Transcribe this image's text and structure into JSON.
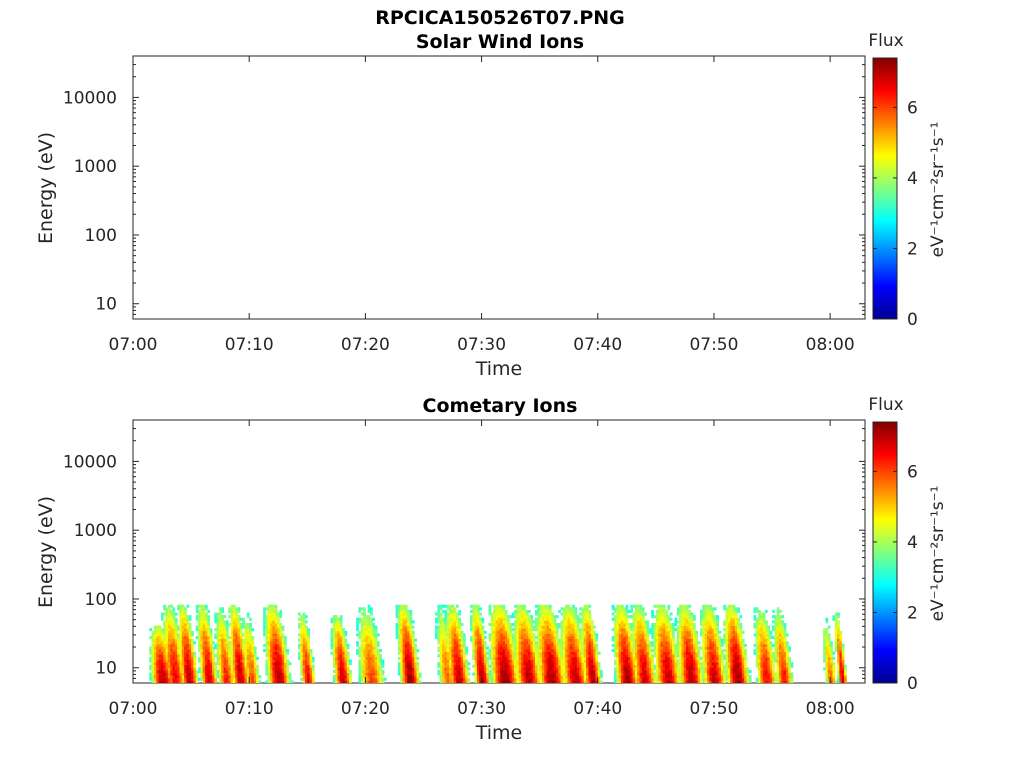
{
  "figure_title": "RPCICA150526T07.PNG",
  "colormap": [
    "#00008f",
    "#0000ff",
    "#0080ff",
    "#00ffff",
    "#80ff80",
    "#ffff00",
    "#ff8000",
    "#ff0000",
    "#800000"
  ],
  "chart_data": [
    {
      "type": "heatmap",
      "title": "Solar Wind Ions",
      "xlabel": "Time",
      "ylabel": "Energy (eV)",
      "y_scale": "log",
      "ylim": [
        6,
        40000
      ],
      "x_tick_labels": [
        "07:00",
        "07:10",
        "07:20",
        "07:30",
        "07:40",
        "07:50",
        "08:00"
      ],
      "y_tick_labels": [
        "10",
        "100",
        "1000",
        "10000"
      ],
      "colorbar": {
        "title": "Flux",
        "units": "eV⁻¹cm⁻²sr⁻¹s⁻¹",
        "range": [
          0,
          7.4
        ],
        "tick_labels": [
          "0",
          "2",
          "4",
          "6"
        ]
      },
      "grid": false,
      "events": []
    },
    {
      "type": "heatmap",
      "title": "Cometary Ions",
      "xlabel": "Time",
      "ylabel": "Energy (eV)",
      "y_scale": "log",
      "ylim": [
        6,
        40000
      ],
      "x_tick_labels": [
        "07:00",
        "07:10",
        "07:20",
        "07:30",
        "07:40",
        "07:50",
        "08:00"
      ],
      "y_tick_labels": [
        "10",
        "100",
        "1000",
        "10000"
      ],
      "colorbar": {
        "title": "Flux",
        "units": "eV⁻¹cm⁻²sr⁻¹s⁻¹",
        "range": [
          0,
          7.4
        ],
        "tick_labels": [
          "0",
          "2",
          "4",
          "6"
        ]
      },
      "grid": false,
      "events": [
        {
          "t": 2.5,
          "w": 1.3,
          "peak": 7.0,
          "emax": 40
        },
        {
          "t": 3.6,
          "w": 1.2,
          "peak": 6.6,
          "emax": 80
        },
        {
          "t": 4.8,
          "w": 1.0,
          "peak": 7.0,
          "emax": 80
        },
        {
          "t": 6.5,
          "w": 1.0,
          "peak": 6.8,
          "emax": 80
        },
        {
          "t": 8.0,
          "w": 1.0,
          "peak": 6.3,
          "emax": 70
        },
        {
          "t": 9.2,
          "w": 1.0,
          "peak": 7.0,
          "emax": 80
        },
        {
          "t": 10.2,
          "w": 0.9,
          "peak": 6.0,
          "emax": 60
        },
        {
          "t": 12.5,
          "w": 1.3,
          "peak": 7.1,
          "emax": 80
        },
        {
          "t": 15.0,
          "w": 0.8,
          "peak": 6.6,
          "emax": 60
        },
        {
          "t": 18.0,
          "w": 1.0,
          "peak": 6.9,
          "emax": 55
        },
        {
          "t": 20.5,
          "w": 1.5,
          "peak": 6.0,
          "emax": 80
        },
        {
          "t": 23.8,
          "w": 1.1,
          "peak": 7.2,
          "emax": 80
        },
        {
          "t": 27.0,
          "w": 1.0,
          "peak": 5.8,
          "emax": 80
        },
        {
          "t": 28.0,
          "w": 1.2,
          "peak": 6.9,
          "emax": 80
        },
        {
          "t": 30.0,
          "w": 0.9,
          "peak": 7.0,
          "emax": 80
        },
        {
          "t": 32.0,
          "w": 1.6,
          "peak": 7.2,
          "emax": 80
        },
        {
          "t": 34.0,
          "w": 1.5,
          "peak": 7.0,
          "emax": 80
        },
        {
          "t": 36.0,
          "w": 1.6,
          "peak": 7.1,
          "emax": 80
        },
        {
          "t": 38.0,
          "w": 1.5,
          "peak": 6.9,
          "emax": 80
        },
        {
          "t": 39.5,
          "w": 1.0,
          "peak": 7.0,
          "emax": 80
        },
        {
          "t": 42.5,
          "w": 1.3,
          "peak": 7.1,
          "emax": 80
        },
        {
          "t": 44.0,
          "w": 1.3,
          "peak": 6.8,
          "emax": 80
        },
        {
          "t": 46.0,
          "w": 1.5,
          "peak": 6.9,
          "emax": 80
        },
        {
          "t": 48.0,
          "w": 1.4,
          "peak": 7.0,
          "emax": 80
        },
        {
          "t": 50.0,
          "w": 1.4,
          "peak": 6.8,
          "emax": 80
        },
        {
          "t": 52.0,
          "w": 1.3,
          "peak": 7.2,
          "emax": 80
        },
        {
          "t": 54.5,
          "w": 1.2,
          "peak": 6.5,
          "emax": 70
        },
        {
          "t": 56.0,
          "w": 1.0,
          "peak": 6.3,
          "emax": 70
        },
        {
          "t": 60.0,
          "w": 0.7,
          "peak": 5.8,
          "emax": 50
        },
        {
          "t": 61.0,
          "w": 0.5,
          "peak": 6.8,
          "emax": 60
        }
      ]
    }
  ]
}
